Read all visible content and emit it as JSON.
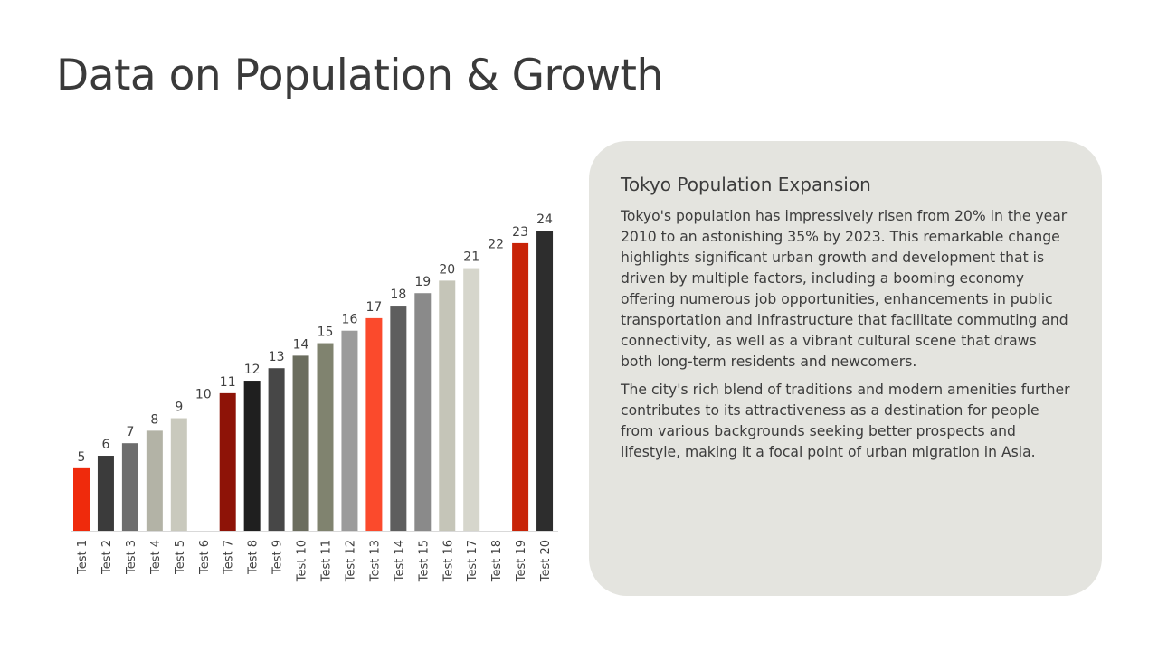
{
  "slide": {
    "title": "Data on Population & Growth"
  },
  "card": {
    "heading": "Tokyo Population Expansion",
    "paragraph1": "Tokyo's population has impressively risen from 20% in the year 2010 to an astonishing 35% by 2023. This remarkable change highlights significant urban growth and development that is driven by multiple factors, including a booming economy offering numerous job opportunities, enhancements in public transportation and infrastructure that facilitate commuting and connectivity, as well as a vibrant cultural scene that draws both long-term residents and newcomers.",
    "paragraph2": "The city's rich blend of traditions and modern amenities further contributes to its attractiveness as a destination for people from various backgrounds seeking better prospects and lifestyle, making it a focal point of urban migration in Asia.",
    "background_color": "#e4e4df"
  },
  "chart_data": {
    "type": "bar",
    "title": "",
    "xlabel": "",
    "ylabel": "",
    "ylim": [
      0,
      24
    ],
    "grid": false,
    "categories": [
      "Test 1",
      "Test 2",
      "Test 3",
      "Test 4",
      "Test 5",
      "Test 6",
      "Test 7",
      "Test 8",
      "Test 9",
      "Test 10",
      "Test 11",
      "Test 12",
      "Test 13",
      "Test 14",
      "Test 15",
      "Test 16",
      "Test 17",
      "Test 18",
      "Test 19",
      "Test 20"
    ],
    "values": [
      5,
      6,
      7,
      8,
      9,
      10,
      11,
      12,
      13,
      14,
      15,
      16,
      17,
      18,
      19,
      20,
      21,
      22,
      23,
      24
    ],
    "bar_colors": [
      "#ef2a0c",
      "#3b3b3b",
      "#6d6d6d",
      "#b3b3a6",
      "#c9c9bd",
      "#ffffff",
      "#8e1307",
      "#1f1f1f",
      "#474747",
      "#6b6d5e",
      "#80836f",
      "#9b9b9b",
      "#fb4a2c",
      "#5e5e5e",
      "#8a8a8a",
      "#c5c5b8",
      "#d6d6cc",
      "#ffffff",
      "#c82307",
      "#2d2d2d"
    ],
    "data_labels": true
  }
}
